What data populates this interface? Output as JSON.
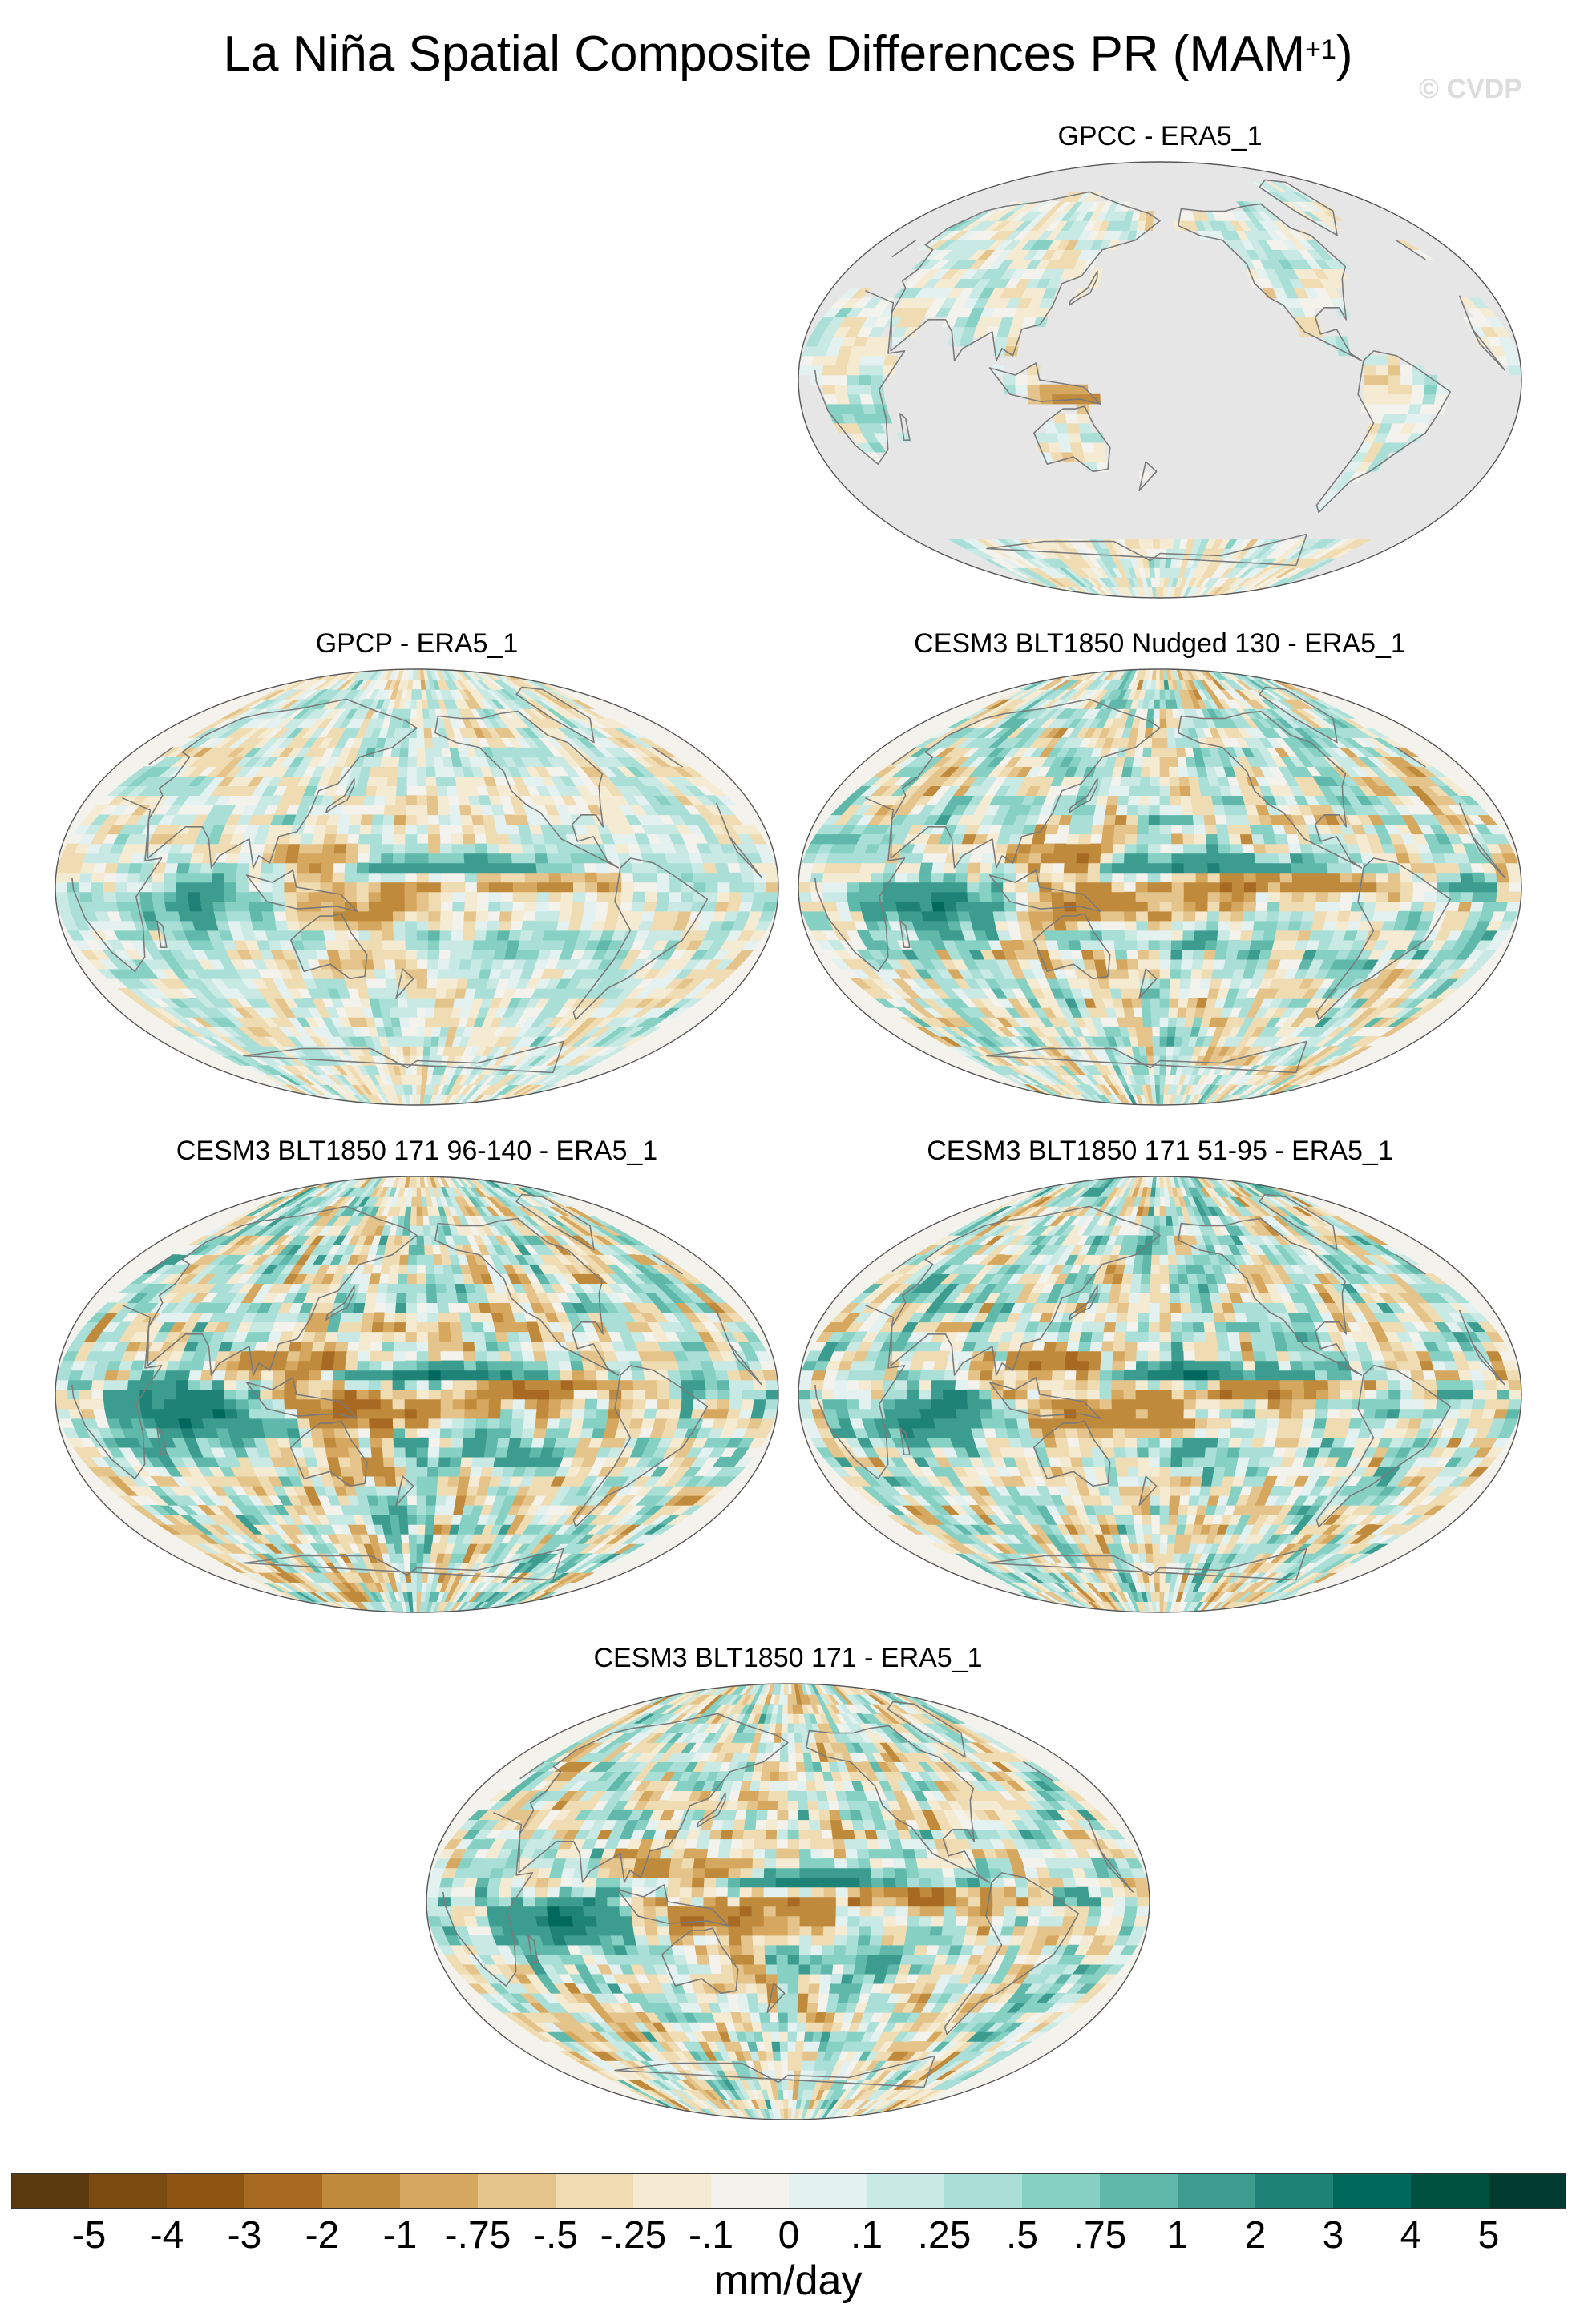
{
  "title": {
    "main": "La Niña Spatial Composite Differences PR (MAM",
    "superscript": "+1",
    "close": ")"
  },
  "watermark": "© CVDP",
  "panels": [
    {
      "title": "GPCC - ERA5_1",
      "land_only": true,
      "strength": 0.45
    },
    {
      "title": "GPCP - ERA5_1",
      "land_only": false,
      "strength": 0.55
    },
    {
      "title": "CESM3 BLT1850 Nudged 130 - ERA5_1",
      "land_only": false,
      "strength": 0.85
    },
    {
      "title": "CESM3 BLT1850 171 96-140 - ERA5_1",
      "land_only": false,
      "strength": 1.0
    },
    {
      "title": "CESM3 BLT1850 171 51-95 - ERA5_1",
      "land_only": false,
      "strength": 0.95
    },
    {
      "title": "CESM3 BLT1850 171 - ERA5_1",
      "land_only": false,
      "strength": 0.9
    }
  ],
  "colorbar": {
    "units": "mm/day",
    "labels": [
      "-5",
      "-4",
      "-3",
      "-2",
      "-1",
      "-.75",
      "-.5",
      "-.25",
      "-.1",
      "0",
      ".1",
      ".25",
      ".5",
      ".75",
      "1",
      "2",
      "3",
      "4",
      "5"
    ],
    "colors": [
      "#5c3a0f",
      "#7a4a10",
      "#8e5412",
      "#a86a22",
      "#c08a3c",
      "#d5a75f",
      "#e4c48a",
      "#efdcb2",
      "#f5ebd2",
      "#f4f2ec",
      "#e3f1f0",
      "#c9e9e5",
      "#aadfd8",
      "#86d0c4",
      "#5fb8aa",
      "#3d9c90",
      "#1f8276",
      "#00685c",
      "#00523f",
      "#003d30"
    ],
    "missing_color": "#e6e6e6",
    "coastline_color": "#7a7a7a"
  }
}
